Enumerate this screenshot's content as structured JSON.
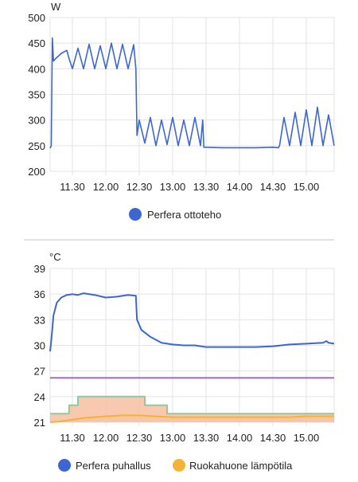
{
  "chart_data": [
    {
      "type": "line",
      "ylabel": "W",
      "ylim": [
        200,
        500
      ],
      "yticks": [
        200,
        250,
        300,
        350,
        400,
        450,
        500
      ],
      "xrange": [
        "11:10",
        "15:25"
      ],
      "xticks": [
        "11.30",
        "12.00",
        "12.30",
        "13.00",
        "13.30",
        "14.00",
        "14.30",
        "15.00"
      ],
      "grid": true,
      "legend_position": "bottom",
      "series": [
        {
          "name": "Perfera ottoteho",
          "color": "#3b66d4",
          "style": "spiky",
          "points": [
            [
              "11:10",
              245
            ],
            [
              "11:11",
              250
            ],
            [
              "11:12",
              460
            ],
            [
              "11:13",
              415
            ],
            [
              "11:15",
              420
            ],
            [
              "11:20",
              430
            ],
            [
              "11:25",
              436
            ],
            [
              "11:27",
              420
            ],
            [
              "11:30",
              400
            ],
            [
              "11:35",
              440
            ],
            [
              "11:40",
              400
            ],
            [
              "11:45",
              448
            ],
            [
              "11:50",
              400
            ],
            [
              "11:55",
              445
            ],
            [
              "12:00",
              400
            ],
            [
              "12:05",
              450
            ],
            [
              "12:10",
              400
            ],
            [
              "12:15",
              448
            ],
            [
              "12:20",
              400
            ],
            [
              "12:25",
              447
            ],
            [
              "12:27",
              400
            ],
            [
              "12:28",
              270
            ],
            [
              "12:30",
              300
            ],
            [
              "12:35",
              255
            ],
            [
              "12:40",
              305
            ],
            [
              "12:45",
              250
            ],
            [
              "12:50",
              300
            ],
            [
              "12:55",
              252
            ],
            [
              "13:00",
              305
            ],
            [
              "13:05",
              250
            ],
            [
              "13:10",
              300
            ],
            [
              "13:15",
              250
            ],
            [
              "13:20",
              305
            ],
            [
              "13:25",
              250
            ],
            [
              "13:27",
              300
            ],
            [
              "13:28",
              247
            ],
            [
              "13:45",
              246
            ],
            [
              "14:00",
              246
            ],
            [
              "14:15",
              246
            ],
            [
              "14:30",
              247
            ],
            [
              "14:35",
              246
            ],
            [
              "14:36",
              250
            ],
            [
              "14:40",
              305
            ],
            [
              "14:45",
              250
            ],
            [
              "14:50",
              315
            ],
            [
              "14:55",
              250
            ],
            [
              "15:00",
              320
            ],
            [
              "15:05",
              250
            ],
            [
              "15:10",
              325
            ],
            [
              "15:15",
              250
            ],
            [
              "15:20",
              310
            ],
            [
              "15:25",
              250
            ]
          ]
        }
      ]
    },
    {
      "type": "line",
      "ylabel": "°C",
      "ylim": [
        21,
        39
      ],
      "yticks": [
        21,
        24,
        27,
        30,
        33,
        36,
        39
      ],
      "xrange": [
        "11:10",
        "15:25"
      ],
      "xticks": [
        "11.30",
        "12.00",
        "12.30",
        "13.00",
        "13.30",
        "14.00",
        "14.30",
        "15.00"
      ],
      "grid": true,
      "legend_position": "bottom",
      "series": [
        {
          "name": "Perfera puhallus",
          "color": "#3b66d4",
          "points": [
            [
              "11:10",
              29.3
            ],
            [
              "11:11",
              30.5
            ],
            [
              "11:13",
              33.5
            ],
            [
              "11:16",
              35.0
            ],
            [
              "11:20",
              35.6
            ],
            [
              "11:25",
              35.9
            ],
            [
              "11:30",
              36.0
            ],
            [
              "11:35",
              35.9
            ],
            [
              "11:40",
              36.1
            ],
            [
              "11:50",
              35.9
            ],
            [
              "12:00",
              35.6
            ],
            [
              "12:10",
              35.7
            ],
            [
              "12:20",
              35.9
            ],
            [
              "12:27",
              35.8
            ],
            [
              "12:28",
              33.0
            ],
            [
              "12:32",
              31.8
            ],
            [
              "12:40",
              31.0
            ],
            [
              "12:50",
              30.3
            ],
            [
              "13:00",
              30.1
            ],
            [
              "13:10",
              30.0
            ],
            [
              "13:20",
              30.0
            ],
            [
              "13:30",
              29.8
            ],
            [
              "13:45",
              29.8
            ],
            [
              "14:00",
              29.8
            ],
            [
              "14:15",
              29.8
            ],
            [
              "14:30",
              29.9
            ],
            [
              "14:45",
              30.1
            ],
            [
              "15:00",
              30.2
            ],
            [
              "15:15",
              30.3
            ],
            [
              "15:18",
              30.5
            ],
            [
              "15:20",
              30.3
            ],
            [
              "15:25",
              30.2
            ]
          ]
        },
        {
          "name": "Ruokahuone lämpötila",
          "color": "#f5b335",
          "fill": "#fde2c8",
          "points": [
            [
              "11:10",
              21.0
            ],
            [
              "11:20",
              21.1
            ],
            [
              "11:30",
              21.3
            ],
            [
              "11:40",
              21.5
            ],
            [
              "11:50",
              21.6
            ],
            [
              "12:00",
              21.7
            ],
            [
              "12:15",
              21.8
            ],
            [
              "12:30",
              21.8
            ],
            [
              "12:45",
              21.7
            ],
            [
              "13:00",
              21.6
            ],
            [
              "13:15",
              21.6
            ],
            [
              "13:30",
              21.6
            ],
            [
              "13:45",
              21.6
            ],
            [
              "14:00",
              21.6
            ],
            [
              "14:15",
              21.6
            ],
            [
              "14:30",
              21.6
            ],
            [
              "14:45",
              21.6
            ],
            [
              "15:00",
              21.7
            ],
            [
              "15:15",
              21.7
            ],
            [
              "15:25",
              21.7
            ]
          ]
        },
        {
          "color": "#8fc9a0",
          "fill": "#f7bfa0",
          "step": true,
          "points": [
            [
              "11:10",
              22.0
            ],
            [
              "11:27",
              22.0
            ],
            [
              "11:27",
              23.0
            ],
            [
              "11:35",
              23.0
            ],
            [
              "11:35",
              24.0
            ],
            [
              "12:35",
              24.0
            ],
            [
              "12:35",
              23.0
            ],
            [
              "12:55",
              23.0
            ],
            [
              "12:55",
              22.0
            ],
            [
              "15:25",
              22.0
            ]
          ]
        },
        {
          "color": "#9b6be0",
          "points": [
            [
              "11:10",
              26.2
            ],
            [
              "15:25",
              26.2
            ]
          ]
        }
      ]
    }
  ]
}
